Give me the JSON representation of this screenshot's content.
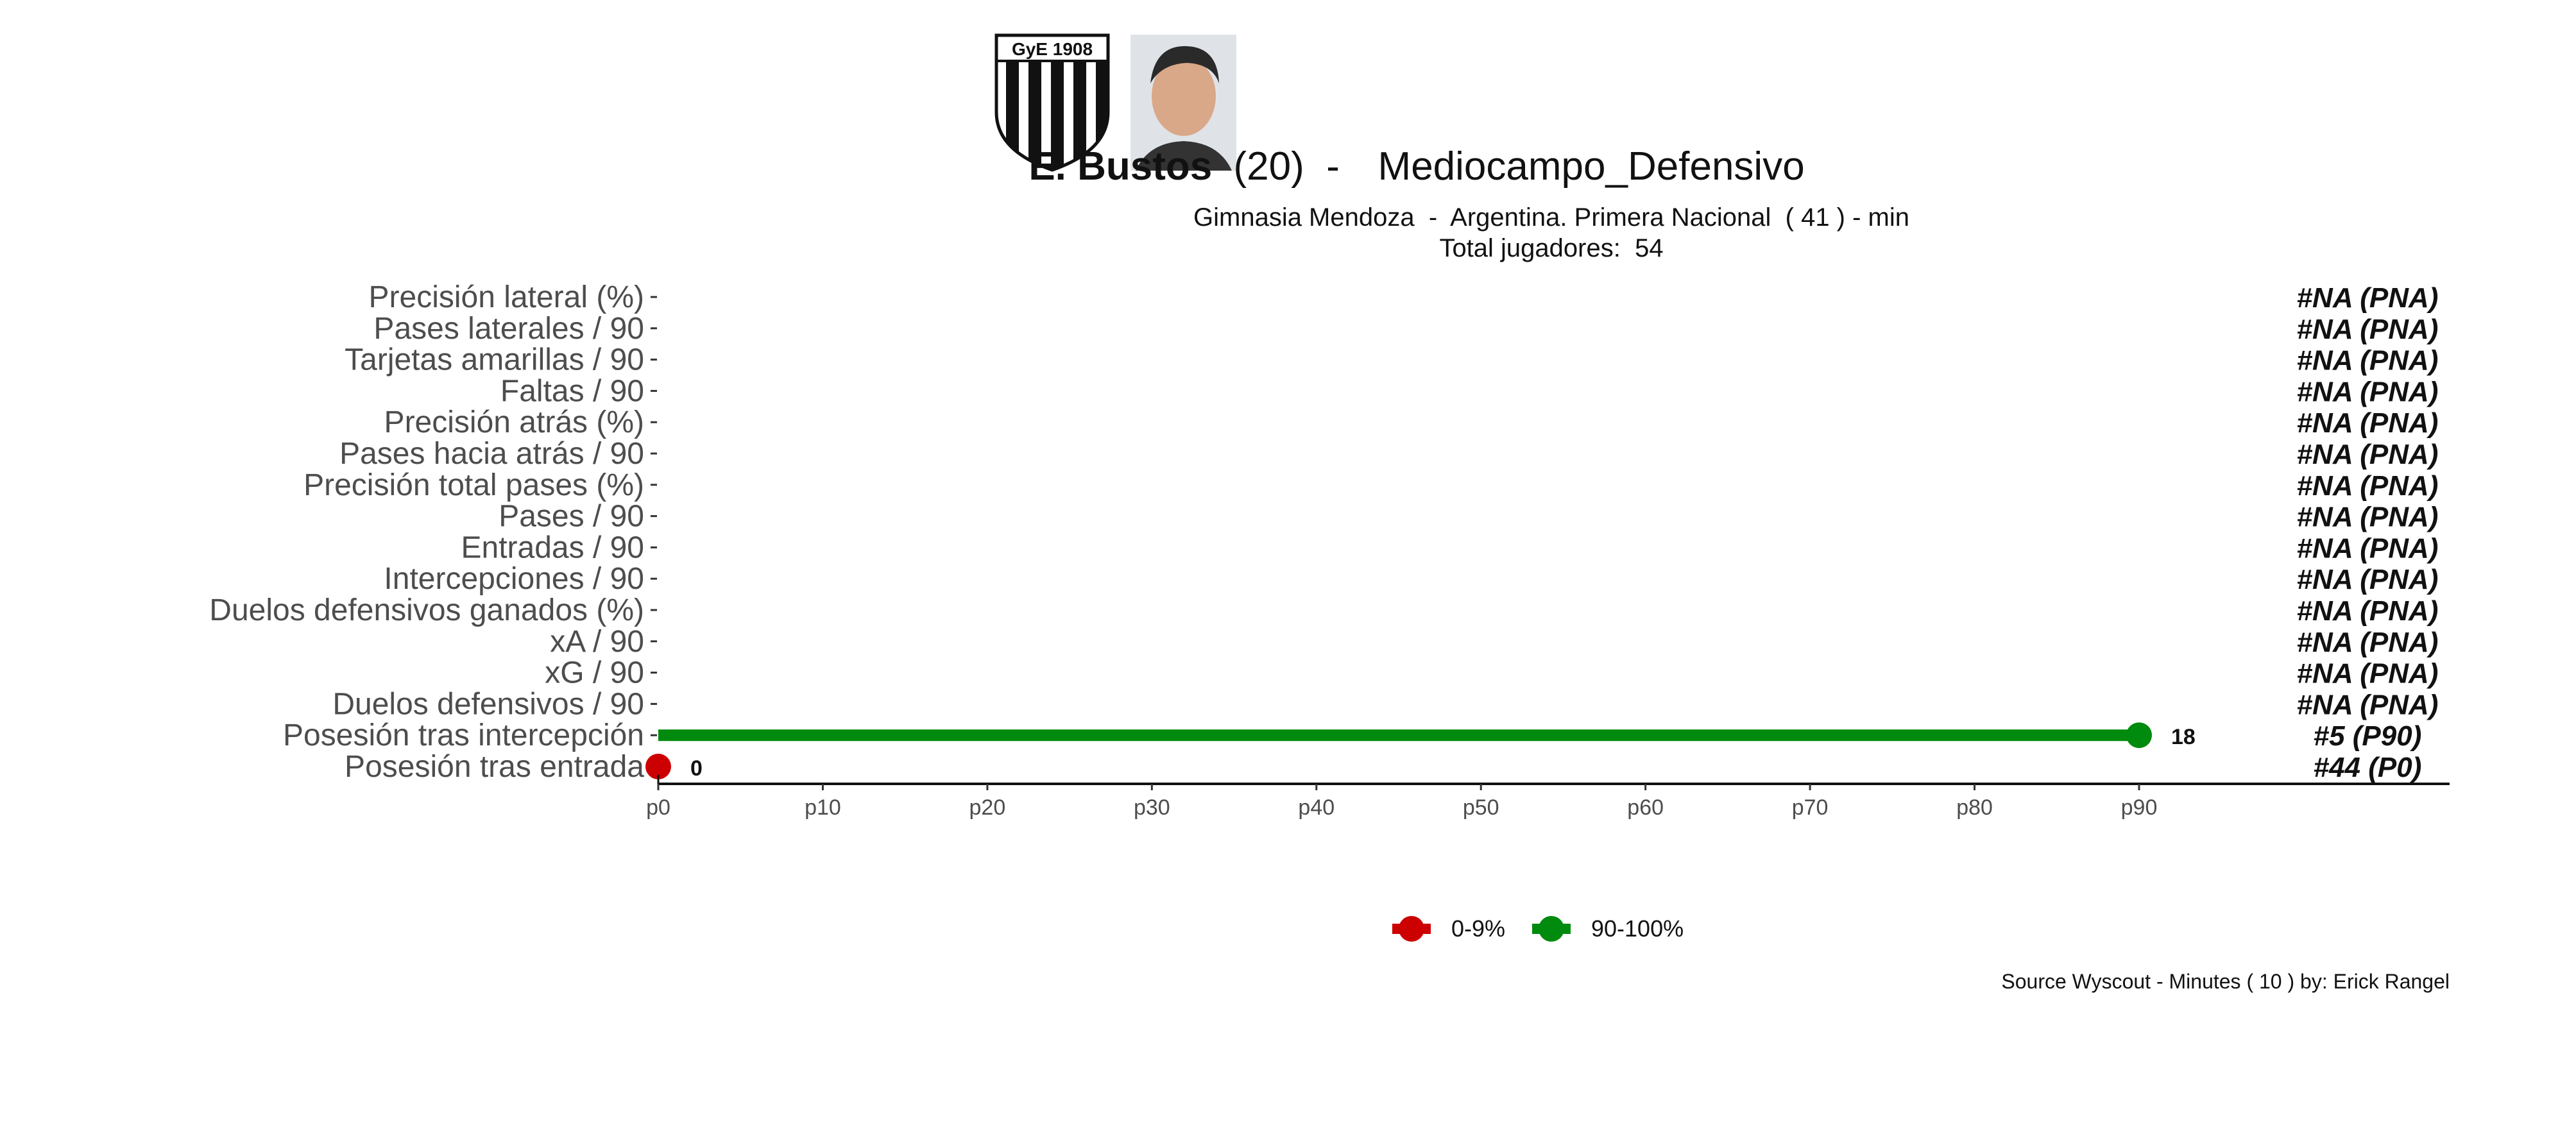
{
  "header": {
    "player_name": "E. Bustos",
    "player_age": "(20)",
    "separator": " -  ",
    "position": "Mediocampo_Defensivo",
    "subtitle": "Gimnasia Mendoza  -  Argentina. Primera Nacional  ( 41 ) - min",
    "total_players": "Total jugadores:  54",
    "club_badge_text": "GyE 1908"
  },
  "source": "Source Wyscout - Minutes ( 10 ) by: Erick Rangel",
  "chart_data": {
    "type": "lollipop",
    "x_axis": {
      "min": 0,
      "max": 90,
      "ticks": [
        "p0",
        "p10",
        "p20",
        "p30",
        "p40",
        "p50",
        "p60",
        "p70",
        "p80",
        "p90"
      ]
    },
    "metrics": [
      {
        "label": "Precisión lateral (%)",
        "percentile": null,
        "value": null,
        "rank_label": "#NA (PNA)"
      },
      {
        "label": "Pases laterales / 90",
        "percentile": null,
        "value": null,
        "rank_label": "#NA (PNA)"
      },
      {
        "label": "Tarjetas amarillas / 90",
        "percentile": null,
        "value": null,
        "rank_label": "#NA (PNA)"
      },
      {
        "label": "Faltas / 90",
        "percentile": null,
        "value": null,
        "rank_label": "#NA (PNA)"
      },
      {
        "label": "Precisión atrás (%)",
        "percentile": null,
        "value": null,
        "rank_label": "#NA (PNA)"
      },
      {
        "label": "Pases hacia atrás / 90",
        "percentile": null,
        "value": null,
        "rank_label": "#NA (PNA)"
      },
      {
        "label": "Precisión total pases (%)",
        "percentile": null,
        "value": null,
        "rank_label": "#NA (PNA)"
      },
      {
        "label": "Pases / 90",
        "percentile": null,
        "value": null,
        "rank_label": "#NA (PNA)"
      },
      {
        "label": "Entradas / 90",
        "percentile": null,
        "value": null,
        "rank_label": "#NA (PNA)"
      },
      {
        "label": "Intercepciones / 90",
        "percentile": null,
        "value": null,
        "rank_label": "#NA (PNA)"
      },
      {
        "label": "Duelos defensivos ganados (%)",
        "percentile": null,
        "value": null,
        "rank_label": "#NA (PNA)"
      },
      {
        "label": "xA / 90",
        "percentile": null,
        "value": null,
        "rank_label": "#NA (PNA)"
      },
      {
        "label": "xG / 90",
        "percentile": null,
        "value": null,
        "rank_label": "#NA (PNA)"
      },
      {
        "label": "Duelos defensivos / 90",
        "percentile": null,
        "value": null,
        "rank_label": "#NA (PNA)"
      },
      {
        "label": "Posesión tras intercepción",
        "percentile": 90,
        "value": "18",
        "rank_label": "#5 (P90)",
        "group": "90-100%"
      },
      {
        "label": "Posesión tras entrada",
        "percentile": 0,
        "value": "0",
        "rank_label": "#44 (P0)",
        "group": "0-9%"
      }
    ],
    "legend": [
      {
        "label": "0-9%",
        "color": "#cc0000"
      },
      {
        "label": "90-100%",
        "color": "#008a0e"
      }
    ],
    "legend_position": "bottom"
  }
}
